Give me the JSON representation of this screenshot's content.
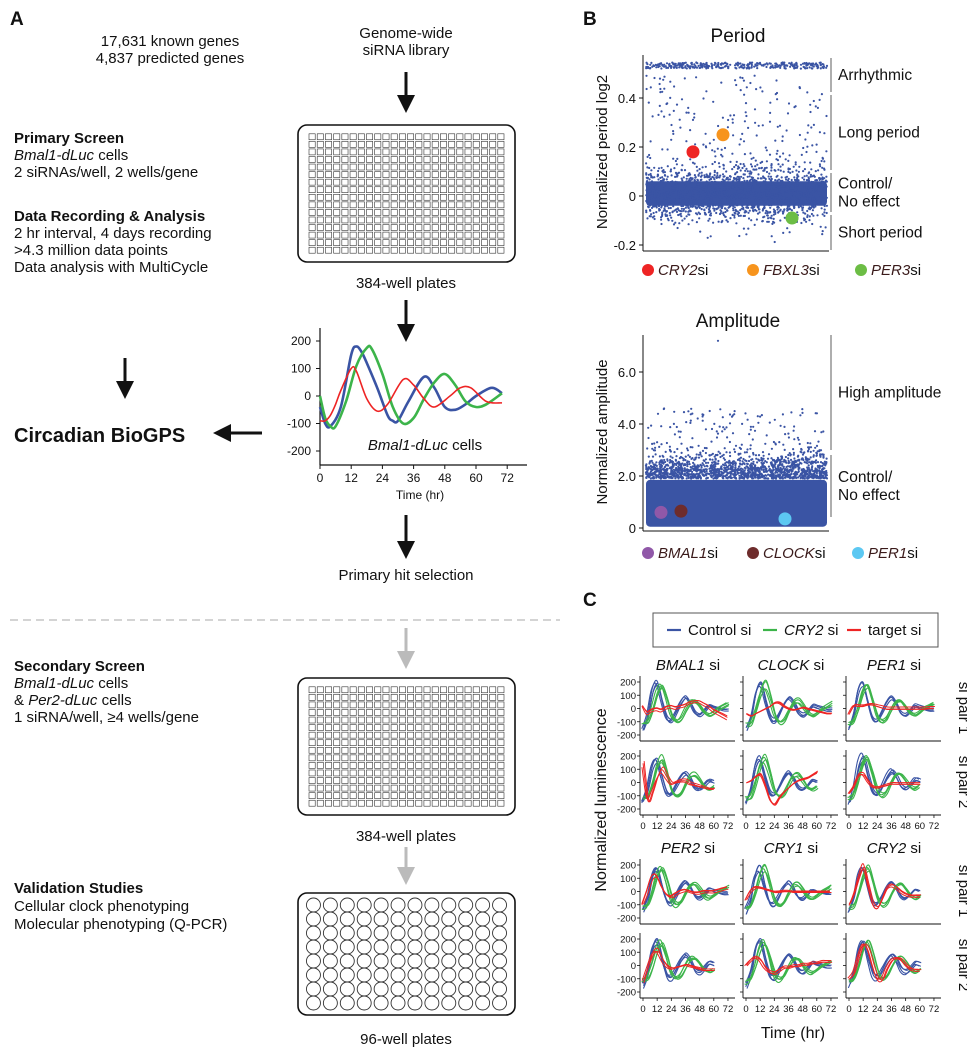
{
  "panel_labels": {
    "a": "A",
    "b": "B",
    "c": "C"
  },
  "panel_a": {
    "genes": [
      "17,631 known genes",
      "4,837 predicted genes"
    ],
    "library": [
      "Genome-wide",
      "siRNA library"
    ],
    "primary": {
      "title": "Primary Screen",
      "cells_italic": "Bmal1-dLuc",
      "cells_suffix": " cells",
      "line2": "2 siRNAs/well, 2 wells/gene"
    },
    "recording": {
      "title": "Data Recording & Analysis",
      "lines": [
        "2 hr interval, 4 days recording",
        ">4.3 million data points",
        "Data analysis with MultiCycle"
      ]
    },
    "biogps": "Circadian BioGPS",
    "plate1_label": "384-well plates",
    "hit_selection": "Primary hit selection",
    "secondary": {
      "title": "Secondary Screen",
      "line1_italic": "Bmal1-dLuc",
      "line1_suffix": " cells",
      "line2_prefix": "& ",
      "line2_italic": "Per2-dLuc",
      "line2_suffix": " cells",
      "line3": "1 siRNA/well, ≥4 wells/gene"
    },
    "plate2_label": "384-well plates",
    "validation": {
      "title": "Validation Studies",
      "lines": [
        "Cellular clock phenotyping",
        "Molecular phenotyping (Q-PCR)"
      ]
    },
    "plate3_label": "96-well plates",
    "plate_384": {
      "columns": 24,
      "rows": 16
    },
    "plate_96": {
      "columns": 12,
      "rows": 8
    }
  },
  "colors": {
    "blue": "#3a54a4",
    "green": "#3cb44a",
    "red": "#ee2424",
    "orange": "#f7941d",
    "light_green": "#6cbd45",
    "purple": "#9058a8",
    "brown": "#6e2c2c",
    "light_blue": "#5cc8f2",
    "gray_arrow": "#bbbbbb"
  },
  "chart_data": [
    {
      "type": "line",
      "annotation_italic": "Bmal1-dLuc",
      "annotation_suffix": " cells",
      "xlabel": "Time (hr)",
      "xticks": [
        "0",
        "12",
        "24",
        "36",
        "48",
        "60",
        "72"
      ],
      "yticks": [
        "200",
        "100",
        "0",
        "-100",
        "-200"
      ],
      "xlim": [
        0,
        72
      ],
      "ylim": [
        -250,
        250
      ],
      "series": [
        {
          "color": "blue",
          "x": [
            0,
            2,
            4,
            8,
            12,
            14,
            16,
            18,
            22,
            26,
            28,
            30,
            34,
            40,
            44,
            48,
            52,
            56,
            60,
            66,
            70
          ],
          "y": [
            -40,
            -100,
            -110,
            -40,
            150,
            180,
            160,
            120,
            30,
            -70,
            -90,
            -90,
            -20,
            70,
            30,
            -40,
            -50,
            -30,
            0,
            30,
            10
          ]
        },
        {
          "color": "green",
          "x": [
            0,
            2,
            4,
            6,
            10,
            14,
            18,
            20,
            24,
            28,
            32,
            36,
            40,
            44,
            48,
            52,
            56,
            60,
            64,
            70
          ],
          "y": [
            0,
            -80,
            -110,
            -110,
            -20,
            110,
            175,
            170,
            80,
            -40,
            -100,
            -80,
            -10,
            50,
            80,
            40,
            -20,
            -40,
            -30,
            10
          ]
        },
        {
          "color": "red",
          "x": [
            0,
            2,
            4,
            6,
            8,
            12,
            14,
            18,
            22,
            26,
            32,
            36,
            40,
            44,
            50,
            54,
            58,
            64,
            70
          ],
          "y": [
            -90,
            -90,
            -70,
            -30,
            20,
            100,
            90,
            -10,
            -55,
            -30,
            60,
            40,
            -10,
            -40,
            0,
            30,
            30,
            -20,
            -25
          ]
        }
      ]
    },
    {
      "type": "scatter",
      "title": "Period",
      "ylabel": "Normalized period log2",
      "yticks": [
        "0.4",
        "0.2",
        "0",
        "-0.2"
      ],
      "ylim": [
        -0.22,
        0.56
      ],
      "regions": [
        "Arrhythmic",
        "Long period",
        "Control/\nNo effect",
        "Short period"
      ],
      "highlights": [
        {
          "gene": "CRY2",
          "suffix": "si",
          "color": "red",
          "y": 0.18
        },
        {
          "gene": "FBXL3",
          "suffix": "si",
          "color": "orange",
          "y": 0.25
        },
        {
          "gene": "PER3",
          "suffix": "si",
          "color": "light_green",
          "y": -0.09
        }
      ]
    },
    {
      "type": "scatter",
      "title": "Amplitude",
      "ylabel": "Normalized amplitude",
      "yticks": [
        "6.0",
        "4.0",
        "2.0",
        "0"
      ],
      "ylim": [
        0,
        7.3
      ],
      "regions": [
        "High amplitude",
        "Control/\nNo effect"
      ],
      "highlights": [
        {
          "gene": "BMAL1",
          "suffix": "si",
          "color": "purple",
          "y": 0.6
        },
        {
          "gene": "CLOCK",
          "suffix": "si",
          "color": "brown",
          "y": 0.65
        },
        {
          "gene": "PER1",
          "suffix": "si",
          "color": "light_blue",
          "y": 0.35
        }
      ]
    },
    {
      "type": "line",
      "legend": [
        {
          "label": "Control si",
          "italic": "",
          "color": "blue"
        },
        {
          "label": " si",
          "italic": "CRY2",
          "color": "green"
        },
        {
          "label": "target si",
          "italic": "",
          "color": "red"
        }
      ],
      "ylabel": "Normalized luminescence",
      "xlabel": "Time (hr)",
      "xticks": [
        "0",
        "12",
        "24",
        "36",
        "48",
        "60",
        "72"
      ],
      "yticks": [
        "200",
        "100",
        "0",
        "-100",
        "-200"
      ],
      "row_labels": [
        "si pair 1",
        "si pair 2"
      ],
      "x_step": 4,
      "control_si": [
        -150,
        -50,
        130,
        180,
        50,
        -70,
        -90,
        -30,
        40,
        80,
        40,
        -30,
        -50,
        -20,
        20,
        10,
        0,
        -10,
        -10
      ],
      "cry2_si": [
        -120,
        -100,
        0,
        130,
        180,
        80,
        -50,
        -100,
        -80,
        -10,
        50,
        60,
        20,
        -30,
        -50,
        -30,
        0,
        20,
        40
      ],
      "panels": [
        {
          "gene": "BMAL1",
          "suffix": " si",
          "pair": 1,
          "x_max": 72,
          "target_si": [
            20,
            -40,
            -20,
            -10,
            -20,
            0,
            10,
            0,
            10,
            20,
            40,
            50,
            50,
            30,
            10,
            -20,
            -40,
            -60,
            -80
          ]
        },
        {
          "gene": "CLOCK",
          "suffix": " si",
          "pair": 1,
          "x_max": 72,
          "target_si": [
            -40,
            -50,
            -30,
            -10,
            10,
            30,
            60,
            60,
            30,
            10,
            0,
            10,
            20,
            10,
            0,
            -10,
            -20,
            -30,
            -30
          ]
        },
        {
          "gene": "PER1",
          "suffix": " si",
          "pair": 1,
          "x_max": 72,
          "target_si": [
            -40,
            20,
            20,
            20,
            30,
            30,
            20,
            10,
            0,
            0,
            0,
            0,
            0,
            0,
            0,
            0,
            0,
            5,
            5
          ]
        },
        {
          "gene": "BMAL1",
          "suffix": " si",
          "pair": 2,
          "x_max": 60,
          "target_si": [
            140,
            -120,
            -60,
            40,
            100,
            50,
            0,
            10,
            20,
            20,
            0,
            -10,
            -20,
            -30,
            -40,
            -40
          ]
        },
        {
          "gene": "CLOCK",
          "suffix": " si",
          "pair": 2,
          "x_max": 60,
          "target_si": [
            0,
            20,
            50,
            60,
            -20,
            -120,
            -150,
            -100,
            -60,
            -30,
            0,
            20,
            30,
            40,
            60,
            80
          ]
        },
        {
          "gene": "PER1",
          "suffix": " si",
          "pair": 2,
          "x_max": 60,
          "target_si": [
            -80,
            -20,
            60,
            70,
            20,
            -20,
            -30,
            -20,
            -10,
            0,
            0,
            0,
            0,
            0,
            0,
            0
          ]
        },
        {
          "gene": "PER2",
          "suffix": " si",
          "pair": 1,
          "x_max": 72,
          "target_si": [
            -100,
            0,
            110,
            120,
            40,
            -20,
            -40,
            -20,
            0,
            10,
            0,
            -10,
            -10,
            0,
            0,
            0,
            10,
            20,
            30
          ]
        },
        {
          "gene": "CRY1",
          "suffix": " si",
          "pair": 1,
          "x_max": 72,
          "target_si": [
            -60,
            0,
            30,
            30,
            20,
            10,
            0,
            0,
            5,
            5,
            0,
            0,
            0,
            0,
            0,
            0,
            0,
            0,
            0
          ]
        },
        {
          "gene": "CRY2",
          "suffix": " si",
          "pair": 1,
          "x_max": 60,
          "target_si": [
            -100,
            -20,
            100,
            180,
            40,
            -100,
            -130,
            -60,
            20,
            40,
            20,
            -10,
            -30,
            -40,
            -40,
            -40
          ]
        },
        {
          "gene": "PER2",
          "suffix": " si",
          "pair": 2,
          "x_max": 60,
          "target_si": [
            -120,
            0,
            100,
            120,
            50,
            0,
            -20,
            -10,
            0,
            10,
            0,
            -10,
            -20,
            -30,
            -30,
            -30
          ]
        },
        {
          "gene": "CRY1",
          "suffix": " si",
          "pair": 2,
          "x_max": 72,
          "target_si": [
            0,
            40,
            60,
            40,
            -10,
            -40,
            -50,
            -30,
            -10,
            -10,
            0,
            0,
            10,
            10,
            20,
            20,
            30,
            30,
            30
          ]
        },
        {
          "gene": "CRY2",
          "suffix": " si",
          "pair": 2,
          "x_max": 60,
          "target_si": [
            -100,
            -60,
            60,
            150,
            120,
            0,
            -100,
            -110,
            -30,
            30,
            50,
            40,
            0,
            -30,
            -40,
            -40
          ]
        }
      ]
    }
  ]
}
